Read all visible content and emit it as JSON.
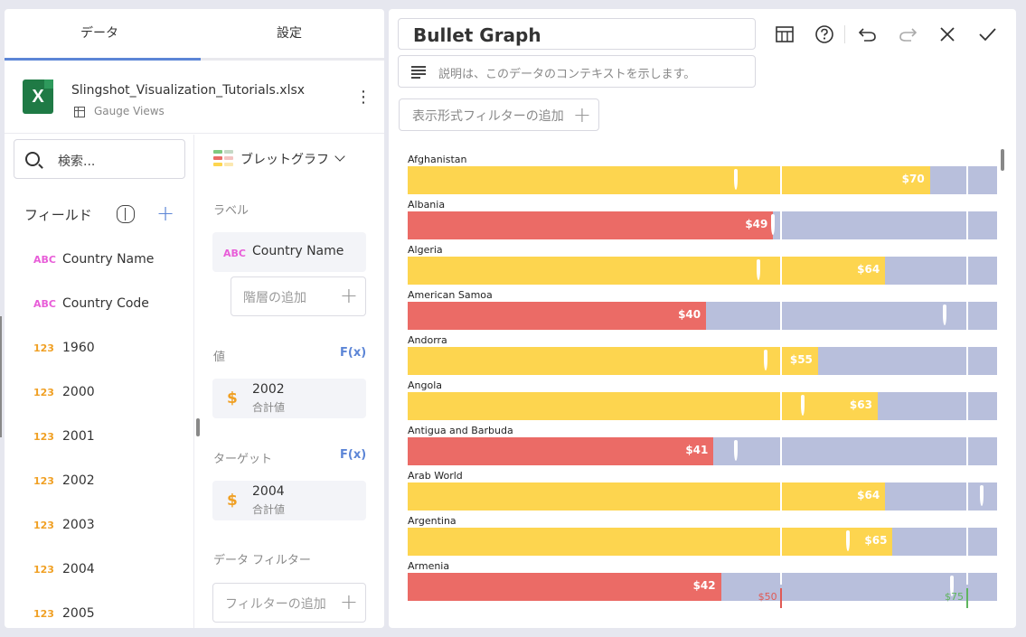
{
  "tabs": [
    "データ",
    "設定"
  ],
  "file": {
    "name": "Slingshot_Visualization_Tutorials.xlsx",
    "sheet": "Gauge Views"
  },
  "search": {
    "placeholder": "検索..."
  },
  "fields": {
    "label": "フィールド",
    "items": [
      {
        "type": "ABC",
        "name": "Country Name"
      },
      {
        "type": "ABC",
        "name": "Country Code"
      },
      {
        "type": "123",
        "name": "1960"
      },
      {
        "type": "123",
        "name": "2000"
      },
      {
        "type": "123",
        "name": "2001"
      },
      {
        "type": "123",
        "name": "2002"
      },
      {
        "type": "123",
        "name": "2003"
      },
      {
        "type": "123",
        "name": "2004"
      },
      {
        "type": "123",
        "name": "2005"
      }
    ]
  },
  "config": {
    "viz_type": "ブレットグラフ",
    "label_section": "ラベル",
    "label_field": {
      "type": "ABC",
      "name": "Country Name"
    },
    "add_hierarchy": "階層の追加",
    "value_section": "値",
    "fx": "F(x)",
    "value_field": {
      "name": "2002",
      "agg": "合計値"
    },
    "target_section": "ターゲット",
    "target_field": {
      "name": "2004",
      "agg": "合計値"
    },
    "data_filter_section": "データ フィルター",
    "add_filter": "フィルターの追加"
  },
  "editor": {
    "title": "Bullet Graph",
    "description_placeholder": "説明は、このデータのコンテキストを示します。",
    "add_view_filter": "表示形式フィルターの追加",
    "toolbar": [
      "table-icon",
      "help-icon",
      "undo-icon",
      "redo-icon",
      "close-icon",
      "check-icon"
    ]
  },
  "colors": {
    "high": "#fdd54f",
    "low": "#eb6b66",
    "band": "#b8bfdc",
    "accent": "#5c85d6",
    "axis_low": "#e05a55",
    "axis_high": "#5fb55f"
  },
  "chart_data": {
    "type": "bullet",
    "title": "Bullet Graph",
    "value_field": "2002",
    "target_field": "2004",
    "thresholds": [
      {
        "label": "$50",
        "value": 50
      },
      {
        "label": "$75",
        "value": 75
      }
    ],
    "x_range": [
      0,
      79
    ],
    "rows": [
      {
        "label": "Afghanistan",
        "value": 70,
        "value_label": "$70",
        "target": 44
      },
      {
        "label": "Albania",
        "value": 49,
        "value_label": "$49",
        "target": 49
      },
      {
        "label": "Algeria",
        "value": 64,
        "value_label": "$64",
        "target": 47
      },
      {
        "label": "American Samoa",
        "value": 40,
        "value_label": "$40",
        "target": 72
      },
      {
        "label": "Andorra",
        "value": 55,
        "value_label": "$55",
        "target": 48
      },
      {
        "label": "Angola",
        "value": 63,
        "value_label": "$63",
        "target": 53
      },
      {
        "label": "Antigua and Barbuda",
        "value": 41,
        "value_label": "$41",
        "target": 44
      },
      {
        "label": "Arab World",
        "value": 64,
        "value_label": "$64",
        "target": 77
      },
      {
        "label": "Argentina",
        "value": 65,
        "value_label": "$65",
        "target": 59
      },
      {
        "label": "Armenia",
        "value": 42,
        "value_label": "$42",
        "target": 73
      }
    ]
  }
}
